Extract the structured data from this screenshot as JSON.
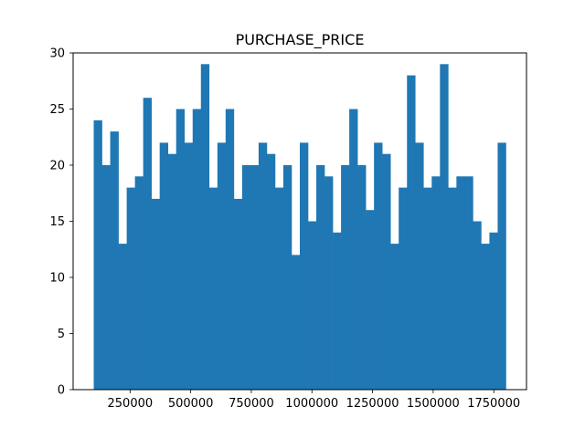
{
  "chart_data": {
    "type": "bar",
    "title": "PURCHASE_PRICE",
    "xlabel": "",
    "ylabel": "",
    "bar_color": "#1f77b4",
    "bin_range": [
      100000,
      1800000
    ],
    "bin_count": 50,
    "counts": [
      24,
      20,
      23,
      13,
      18,
      19,
      26,
      17,
      22,
      21,
      25,
      22,
      25,
      29,
      18,
      22,
      25,
      17,
      20,
      20,
      22,
      21,
      18,
      20,
      12,
      22,
      15,
      20,
      19,
      14,
      20,
      25,
      20,
      16,
      22,
      21,
      13,
      18,
      28,
      22,
      18,
      19,
      29,
      18,
      19,
      19,
      15,
      13,
      14,
      22
    ],
    "xlim": [
      15000,
      1885000
    ],
    "ylim": [
      0,
      30
    ],
    "x_ticks": [
      250000,
      500000,
      750000,
      1000000,
      1250000,
      1500000,
      1750000
    ],
    "x_tick_labels": [
      "250000",
      "500000",
      "750000",
      "1000000",
      "1250000",
      "1500000",
      "1750000"
    ],
    "y_ticks": [
      0,
      5,
      10,
      15,
      20,
      25,
      30
    ],
    "y_tick_labels": [
      "0",
      "5",
      "10",
      "15",
      "20",
      "25",
      "30"
    ],
    "grid": false,
    "legend": "none"
  }
}
